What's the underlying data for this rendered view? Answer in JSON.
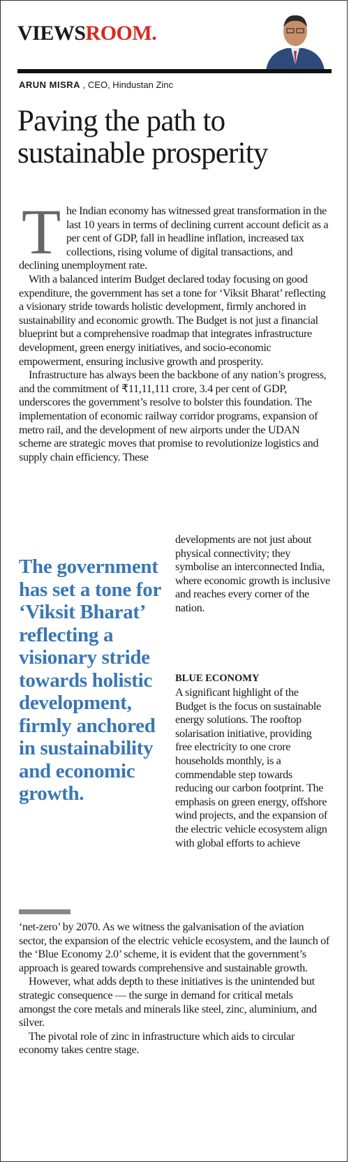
{
  "header": {
    "logo_part1": "VIEWS",
    "logo_part2": "ROOM."
  },
  "byline": {
    "name": "ARUN MISRA",
    "role": ", CEO, Hindustan Zinc"
  },
  "article": {
    "title": "Paving the path to sustainable prosperity",
    "drop_cap": "T",
    "body_top": [
      "he Indian economy has witnessed great transformation in the last 10 years in terms of declining current account deficit as a per cent of GDP, fall in headline inflation, increased tax collections, rising volume of digital transactions, and declining unemployment rate.",
      "With a balanced interim Budget declared today focusing on good expenditure, the government has set a tone for ‘Viksit Bharat’ reflecting a visionary stride towards holistic development, firmly anchored in sustainability and economic growth. The Budget is not just a financial blueprint but a comprehensive roadmap that integrates infrastructure development, green energy initiatives, and socio-economic empowerment, ensuring inclusive growth and prosperity.",
      "Infrastructure has always been the backbone of any nation’s progress, and the commitment of ₹11,11,111 crore, 3.4 per cent of GDP, underscores the government’s resolve to bolster this foundation. The implementation of economic railway corridor programs, expansion of metro rail, and the development of new airports under the UDAN scheme are strategic moves that promise to revolutionize logistics and supply chain efficiency. These"
    ],
    "pull_quote": "The government has set a tone for ‘Viksit Bharat’ reflecting a visionary stride towards holistic development, firmly anchored in sustainability and economic growth.",
    "column_right": [
      "developments are not just about physical connectivity; they symbolise an interconnected India, where economic growth is inclusive and reaches every corner of the nation."
    ],
    "section_heading": "BLUE ECONOMY",
    "column_right_after_heading": [
      "A significant highlight of the Budget is the focus on sustainable energy solutions. The rooftop solarisation initiative, providing free electricity to one crore households monthly, is a commendable step towards reducing our carbon footprint. The emphasis on green energy, offshore wind projects, and the expansion of the electric vehicle ecosystem align with global efforts to achieve"
    ],
    "body_bottom": [
      "‘net-zero’ by 2070. As we witness the galvanisation of the aviation sector, the expansion of the electric vehicle ecosystem, and the launch of the ‘Blue Economy 2.0’ scheme, it is evident that the government’s approach is geared towards comprehensive and sustainable growth.",
      "However, what adds depth to these initiatives is the unintended but strategic consequence — the surge in demand for critical metals amongst the core metals and minerals like steel, zinc, aluminium, and silver.",
      "The pivotal role of zinc in infrastructure which aids to circular economy takes centre stage."
    ]
  }
}
